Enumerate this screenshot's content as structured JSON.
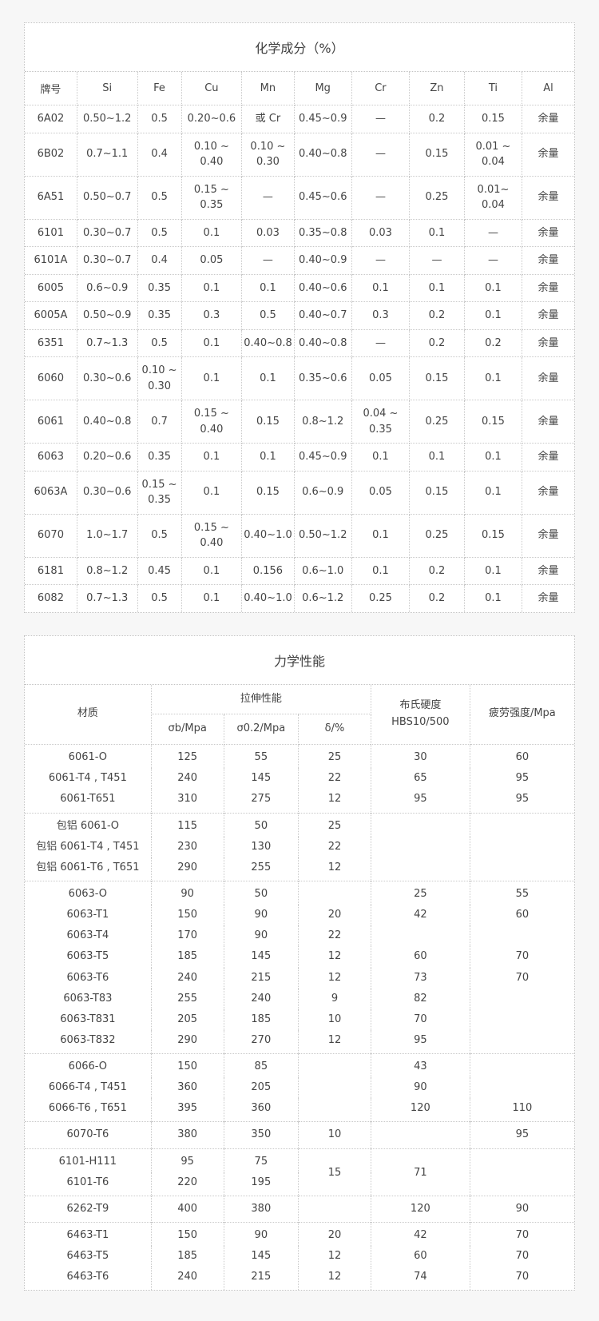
{
  "colors": {
    "page_background": "#f7f7f7",
    "card_background": "#ffffff",
    "border": "#c9c9c9",
    "text": "#444444"
  },
  "chem": {
    "title": "化学成分（%）",
    "columns": [
      "牌号",
      "Si",
      "Fe",
      "Cu",
      "Mn",
      "Mg",
      "Cr",
      "Zn",
      "Ti",
      "Al"
    ],
    "rows": [
      [
        "6A02",
        "0.50~1.2",
        "0.5",
        "0.20~0.6",
        "或 Cr",
        "0.45~0.9",
        "—",
        "0.2",
        "0.15",
        "余量"
      ],
      [
        "6B02",
        "0.7~1.1",
        "0.4",
        "0.10 ~\n0.40",
        "0.10 ~\n0.30",
        "0.40~0.8",
        "—",
        "0.15",
        "0.01 ~\n0.04",
        "余量"
      ],
      [
        "6A51",
        "0.50~0.7",
        "0.5",
        "0.15 ~\n0.35",
        "—",
        "0.45~0.6",
        "—",
        "0.25",
        "0.01~\n0.04",
        "余量"
      ],
      [
        "6101",
        "0.30~0.7",
        "0.5",
        "0.1",
        "0.03",
        "0.35~0.8",
        "0.03",
        "0.1",
        "—",
        "余量"
      ],
      [
        "6101A",
        "0.30~0.7",
        "0.4",
        "0.05",
        "—",
        "0.40~0.9",
        "—",
        "—",
        "—",
        "余量"
      ],
      [
        "6005",
        "0.6~0.9",
        "0.35",
        "0.1",
        "0.1",
        "0.40~0.6",
        "0.1",
        "0.1",
        "0.1",
        "余量"
      ],
      [
        "6005A",
        "0.50~0.9",
        "0.35",
        "0.3",
        "0.5",
        "0.40~0.7",
        "0.3",
        "0.2",
        "0.1",
        "余量"
      ],
      [
        "6351",
        "0.7~1.3",
        "0.5",
        "0.1",
        "0.40~0.8",
        "0.40~0.8",
        "—",
        "0.2",
        "0.2",
        "余量"
      ],
      [
        "6060",
        "0.30~0.6",
        "0.10 ~\n0.30",
        "0.1",
        "0.1",
        "0.35~0.6",
        "0.05",
        "0.15",
        "0.1",
        "余量"
      ],
      [
        "6061",
        "0.40~0.8",
        "0.7",
        "0.15 ~\n0.40",
        "0.15",
        "0.8~1.2",
        "0.04 ~\n0.35",
        "0.25",
        "0.15",
        "余量"
      ],
      [
        "6063",
        "0.20~0.6",
        "0.35",
        "0.1",
        "0.1",
        "0.45~0.9",
        "0.1",
        "0.1",
        "0.1",
        "余量"
      ],
      [
        "6063A",
        "0.30~0.6",
        "0.15 ~\n0.35",
        "0.1",
        "0.15",
        "0.6~0.9",
        "0.05",
        "0.15",
        "0.1",
        "余量"
      ],
      [
        "6070",
        "1.0~1.7",
        "0.5",
        "0.15 ~\n0.40",
        "0.40~1.0",
        "0.50~1.2",
        "0.1",
        "0.25",
        "0.15",
        "余量"
      ],
      [
        "6181",
        "0.8~1.2",
        "0.45",
        "0.1",
        "0.156",
        "0.6~1.0",
        "0.1",
        "0.2",
        "0.1",
        "余量"
      ],
      [
        "6082",
        "0.7~1.3",
        "0.5",
        "0.1",
        "0.40~1.0",
        "0.6~1.2",
        "0.25",
        "0.2",
        "0.1",
        "余量"
      ]
    ]
  },
  "mech": {
    "title": "力学性能",
    "header": {
      "material": "材质",
      "tensile": "拉伸性能",
      "sigma_b": "σb/Mpa",
      "sigma_02": "σ0.2/Mpa",
      "delta": "δ/%",
      "hardness_line1": "布氏硬度",
      "hardness_line2": "HBS10/500",
      "fatigue": "疲劳强度/Mpa"
    },
    "groups": [
      {
        "rows": [
          [
            "6061-O",
            "125",
            "55",
            "25",
            "30",
            "60"
          ],
          [
            "6061-T4 , T451",
            "240",
            "145",
            "22",
            "65",
            "95"
          ],
          [
            "6061-T651",
            "310",
            "275",
            "12",
            "95",
            "95"
          ]
        ]
      },
      {
        "rows": [
          [
            "包铝 6061-O",
            "115",
            "50",
            "25",
            "",
            ""
          ],
          [
            "包铝 6061-T4 , T451",
            "230",
            "130",
            "22",
            "",
            ""
          ],
          [
            "包铝 6061-T6 , T651",
            "290",
            "255",
            "12",
            "",
            ""
          ]
        ]
      },
      {
        "rows": [
          [
            "6063-O",
            "90",
            "50",
            "",
            "25",
            "55"
          ],
          [
            "6063-T1",
            "150",
            "90",
            "20",
            "42",
            "60"
          ],
          [
            "6063-T4",
            "170",
            "90",
            "22",
            "",
            ""
          ],
          [
            "6063-T5",
            "185",
            "145",
            "12",
            "60",
            "70"
          ],
          [
            "6063-T6",
            "240",
            "215",
            "12",
            "73",
            "70"
          ],
          [
            "6063-T83",
            "255",
            "240",
            "9",
            "82",
            ""
          ],
          [
            "6063-T831",
            "205",
            "185",
            "10",
            "70",
            ""
          ],
          [
            "6063-T832",
            "290",
            "270",
            "12",
            "95",
            ""
          ]
        ]
      },
      {
        "rows": [
          [
            "6066-O",
            "150",
            "85",
            "",
            "43",
            ""
          ],
          [
            "6066-T4 , T451",
            "360",
            "205",
            "",
            "90",
            ""
          ],
          [
            "6066-T6 , T651",
            "395",
            "360",
            "",
            "120",
            "110"
          ]
        ]
      },
      {
        "pad": true,
        "rows": [
          [
            "6070-T6",
            "380",
            "350",
            "10",
            "",
            "95"
          ]
        ]
      },
      {
        "rows": [
          [
            "6101-H111",
            "95",
            "75",
            {
              "t": "15",
              "rs": 2
            },
            {
              "t": "71",
              "rs": 2
            },
            {
              "t": "",
              "rs": 2
            }
          ],
          [
            "6101-T6",
            "220",
            "195"
          ]
        ]
      },
      {
        "pad": true,
        "rows": [
          [
            "6262-T9",
            "400",
            "380",
            "",
            "120",
            "90"
          ]
        ]
      },
      {
        "rows": [
          [
            "6463-T1",
            "150",
            "90",
            "20",
            "42",
            "70"
          ],
          [
            "6463-T5",
            "185",
            "145",
            "12",
            "60",
            "70"
          ],
          [
            "6463-T6",
            "240",
            "215",
            "12",
            "74",
            "70"
          ]
        ]
      }
    ]
  }
}
